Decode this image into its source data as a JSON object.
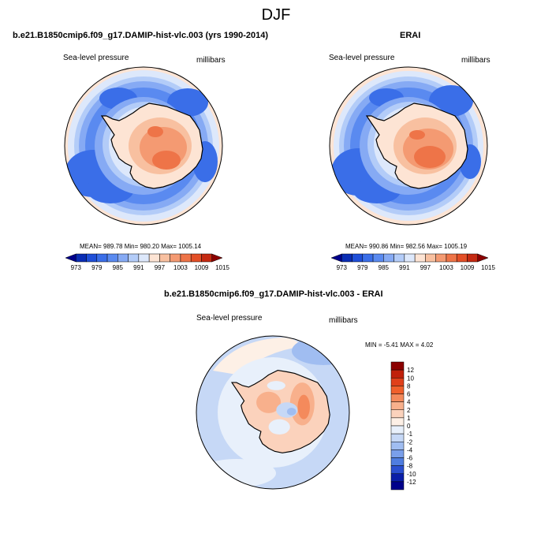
{
  "figure": {
    "title": "DJF",
    "panels": {
      "model": {
        "title": "b.e21.B1850cmip6.f09_g17.DAMIP-hist-vlc.003 (yrs 1990-2014)",
        "left_label": "Sea-level pressure",
        "right_label": "millibars",
        "stats": "MEAN= 989.78   Min= 980.20   Max= 1005.14"
      },
      "obs": {
        "title": "ERAI",
        "left_label": "Sea-level pressure",
        "right_label": "millibars",
        "stats": "MEAN= 990.86   Min= 982.56   Max= 1005.19"
      },
      "diff": {
        "title": "b.e21.B1850cmip6.f09_g17.DAMIP-hist-vlc.003 - ERAI",
        "left_label": "Sea-level pressure",
        "right_label": "millibars",
        "stats": "MIN =  -5.41 MAX =   4.02"
      }
    }
  },
  "chart_data": [
    {
      "type": "heatmap",
      "projection": "south-polar-stereographic",
      "title": "b.e21.B1850cmip6.f09_g17.DAMIP-hist-vlc.003 (yrs 1990-2014)",
      "variable": "Sea-level pressure",
      "units": "millibars",
      "mean": 989.78,
      "min": 980.2,
      "max": 1005.14,
      "colorbar": {
        "orientation": "horizontal",
        "levels": [
          973,
          976,
          979,
          982,
          985,
          988,
          991,
          994,
          997,
          1000,
          1003,
          1006,
          1009,
          1012,
          1015
        ],
        "tick_labels": [
          "973",
          "979",
          "985",
          "991",
          "997",
          "1003",
          "1009",
          "1015"
        ],
        "colors": [
          "#00008b",
          "#0a2db4",
          "#1f4fd8",
          "#3a6ee8",
          "#5a8af0",
          "#86aaf4",
          "#b3ccf8",
          "#dde8fb",
          "#fde4d4",
          "#f8c0a0",
          "#f49a72",
          "#ee7448",
          "#e34f27",
          "#c52a12",
          "#8b0000"
        ]
      }
    },
    {
      "type": "heatmap",
      "projection": "south-polar-stereographic",
      "title": "ERAI",
      "variable": "Sea-level pressure",
      "units": "millibars",
      "mean": 990.86,
      "min": 982.56,
      "max": 1005.19,
      "colorbar": {
        "orientation": "horizontal",
        "levels": [
          973,
          976,
          979,
          982,
          985,
          988,
          991,
          994,
          997,
          1000,
          1003,
          1006,
          1009,
          1012,
          1015
        ],
        "tick_labels": [
          "973",
          "979",
          "985",
          "991",
          "997",
          "1003",
          "1009",
          "1015"
        ],
        "colors": [
          "#00008b",
          "#0a2db4",
          "#1f4fd8",
          "#3a6ee8",
          "#5a8af0",
          "#86aaf4",
          "#b3ccf8",
          "#dde8fb",
          "#fde4d4",
          "#f8c0a0",
          "#f49a72",
          "#ee7448",
          "#e34f27",
          "#c52a12",
          "#8b0000"
        ]
      }
    },
    {
      "type": "heatmap",
      "projection": "south-polar-stereographic",
      "title": "b.e21.B1850cmip6.f09_g17.DAMIP-hist-vlc.003 - ERAI",
      "variable": "Sea-level pressure",
      "units": "millibars",
      "min": -5.41,
      "max": 4.02,
      "colorbar": {
        "orientation": "vertical",
        "levels": [
          -12,
          -10,
          -8,
          -6,
          -4,
          -2,
          -1,
          0,
          1,
          2,
          4,
          6,
          8,
          10,
          12
        ],
        "tick_labels": [
          "12",
          "10",
          "8",
          "6",
          "4",
          "2",
          "1",
          "0",
          "-1",
          "-2",
          "-4",
          "-6",
          "-8",
          "-10",
          "-12"
        ],
        "colors": [
          "#8b0000",
          "#c0200a",
          "#e0401a",
          "#f0602c",
          "#f48a5c",
          "#f8b08c",
          "#fbd2bc",
          "#fdf0e6",
          "#e8f0fb",
          "#c6d8f6",
          "#a0bdf1",
          "#7a9fea",
          "#4f7de0",
          "#2a4fd0",
          "#0a1ea8",
          "#00008b"
        ]
      }
    }
  ]
}
